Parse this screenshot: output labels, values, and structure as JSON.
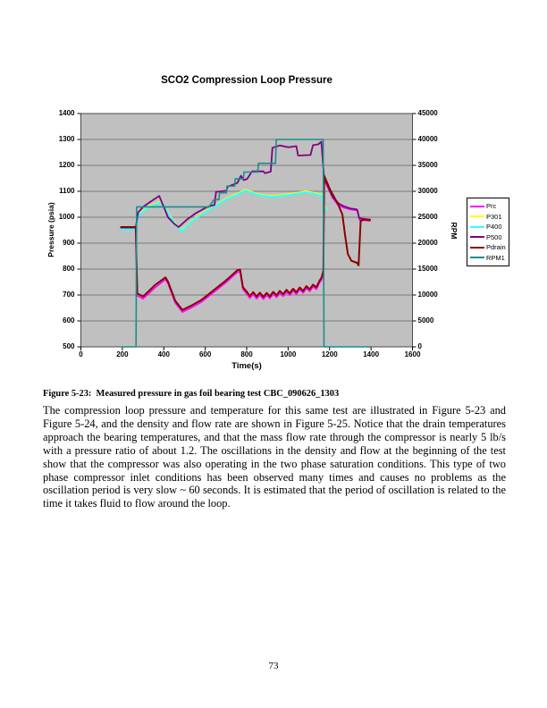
{
  "page": {
    "number": "73"
  },
  "figure": {
    "caption": "Figure 5-23:  Measured pressure in gas foil bearing test CBC_090626_1303"
  },
  "paragraph": {
    "text": "The compression loop pressure and temperature for this same test are illustrated in Figure 5-23 and Figure 5-24, and the density and flow rate are shown in Figure 5-25.  Notice that the drain temperatures approach the bearing temperatures, and that the mass flow rate through the compressor is nearly 5 lb/s with a pressure ratio of about 1.2.  The oscillations in the density and flow at the beginning of the test show that the compressor was also operating in the two phase saturation conditions.  This type of two phase compressor inlet conditions has been observed many times and causes no problems as the oscillation period is very slow ~ 60 seconds.  It is estimated that the period of oscillation is related to the time it takes fluid to flow around the loop."
  },
  "chart_data": {
    "type": "line",
    "title": "SCO2 Compression Loop Pressure",
    "xlabel": "Time(s)",
    "ylabel_left": "Pressure (psia)",
    "ylabel_right": "RPM",
    "xlim": [
      0,
      1600
    ],
    "ylim_left": [
      500,
      1400
    ],
    "ylim_right": [
      0,
      45000
    ],
    "x_ticks": [
      0,
      200,
      400,
      600,
      800,
      1000,
      1200,
      1400,
      1600
    ],
    "y_ticks_left": [
      500,
      600,
      700,
      800,
      900,
      1000,
      1100,
      1200,
      1300,
      1400
    ],
    "y_ticks_right": [
      0,
      5000,
      10000,
      15000,
      20000,
      25000,
      30000,
      35000,
      40000,
      45000
    ],
    "plot_bg": "#c0c0c0",
    "grid": "horizontal-only",
    "legend_position": "right",
    "series": [
      {
        "name": "Prc",
        "color": "#ff00ff",
        "axis": "left",
        "width": 1.7,
        "points": [
          [
            190,
            955
          ],
          [
            265,
            955
          ],
          [
            272,
            697
          ],
          [
            300,
            686
          ],
          [
            360,
            730
          ],
          [
            408,
            760
          ],
          [
            420,
            745
          ],
          [
            455,
            670
          ],
          [
            490,
            634
          ],
          [
            530,
            650
          ],
          [
            580,
            672
          ],
          [
            640,
            710
          ],
          [
            700,
            748
          ],
          [
            755,
            788
          ],
          [
            768,
            790
          ],
          [
            782,
            722
          ],
          [
            800,
            705
          ],
          [
            815,
            688
          ],
          [
            832,
            703
          ],
          [
            848,
            686
          ],
          [
            864,
            701
          ],
          [
            880,
            684
          ],
          [
            896,
            700
          ],
          [
            912,
            687
          ],
          [
            928,
            704
          ],
          [
            944,
            691
          ],
          [
            960,
            708
          ],
          [
            976,
            695
          ],
          [
            992,
            712
          ],
          [
            1008,
            699
          ],
          [
            1024,
            716
          ],
          [
            1040,
            703
          ],
          [
            1056,
            721
          ],
          [
            1072,
            708
          ],
          [
            1088,
            726
          ],
          [
            1104,
            714
          ],
          [
            1120,
            732
          ],
          [
            1136,
            722
          ],
          [
            1152,
            748
          ],
          [
            1162,
            760
          ],
          [
            1170,
            786
          ],
          [
            1174,
            1145
          ],
          [
            1215,
            1075
          ],
          [
            1240,
            1048
          ],
          [
            1265,
            1038
          ],
          [
            1300,
            1030
          ],
          [
            1335,
            1026
          ],
          [
            1344,
            990
          ],
          [
            1398,
            986
          ]
        ]
      },
      {
        "name": "P301",
        "color": "#ffff00",
        "axis": "left",
        "width": 1.7,
        "points": [
          [
            190,
            957
          ],
          [
            265,
            957
          ],
          [
            276,
            1010
          ],
          [
            330,
            1044
          ],
          [
            390,
            1062
          ],
          [
            425,
            1015
          ],
          [
            460,
            972
          ],
          [
            486,
            950
          ],
          [
            530,
            985
          ],
          [
            580,
            1013
          ],
          [
            640,
            1042
          ],
          [
            700,
            1072
          ],
          [
            750,
            1090
          ],
          [
            795,
            1107
          ],
          [
            860,
            1088
          ],
          [
            920,
            1082
          ],
          [
            1010,
            1090
          ],
          [
            1085,
            1100
          ],
          [
            1130,
            1094
          ],
          [
            1165,
            1086
          ],
          [
            1176,
            1038
          ],
          [
            1190,
            1032
          ]
        ]
      },
      {
        "name": "P400",
        "color": "#33ffff",
        "axis": "left",
        "width": 2.2,
        "points": [
          [
            190,
            953
          ],
          [
            265,
            953
          ],
          [
            276,
            1006
          ],
          [
            330,
            1040
          ],
          [
            390,
            1058
          ],
          [
            425,
            1011
          ],
          [
            460,
            968
          ],
          [
            486,
            946
          ],
          [
            530,
            981
          ],
          [
            580,
            1009
          ],
          [
            640,
            1038
          ],
          [
            700,
            1068
          ],
          [
            750,
            1086
          ],
          [
            795,
            1103
          ],
          [
            860,
            1084
          ],
          [
            920,
            1078
          ],
          [
            1010,
            1086
          ],
          [
            1085,
            1096
          ],
          [
            1130,
            1090
          ],
          [
            1165,
            1082
          ],
          [
            1176,
            1034
          ],
          [
            1190,
            1028
          ]
        ]
      },
      {
        "name": "P500",
        "color": "#800080",
        "axis": "left",
        "width": 1.8,
        "points": [
          [
            190,
            960
          ],
          [
            265,
            960
          ],
          [
            276,
            1018
          ],
          [
            300,
            1040
          ],
          [
            340,
            1062
          ],
          [
            378,
            1082
          ],
          [
            400,
            1040
          ],
          [
            420,
            1000
          ],
          [
            450,
            975
          ],
          [
            472,
            962
          ],
          [
            510,
            990
          ],
          [
            555,
            1016
          ],
          [
            605,
            1038
          ],
          [
            645,
            1048
          ],
          [
            652,
            1098
          ],
          [
            702,
            1102
          ],
          [
            708,
            1118
          ],
          [
            755,
            1132
          ],
          [
            772,
            1160
          ],
          [
            786,
            1143
          ],
          [
            802,
            1148
          ],
          [
            826,
            1177
          ],
          [
            880,
            1177
          ],
          [
            888,
            1170
          ],
          [
            916,
            1176
          ],
          [
            924,
            1268
          ],
          [
            960,
            1277
          ],
          [
            1002,
            1270
          ],
          [
            1040,
            1274
          ],
          [
            1048,
            1238
          ],
          [
            1108,
            1240
          ],
          [
            1120,
            1278
          ],
          [
            1145,
            1281
          ],
          [
            1160,
            1291
          ],
          [
            1174,
            1150
          ],
          [
            1215,
            1078
          ],
          [
            1245,
            1052
          ],
          [
            1270,
            1042
          ],
          [
            1300,
            1034
          ],
          [
            1332,
            1030
          ],
          [
            1344,
            996
          ],
          [
            1398,
            990
          ]
        ]
      },
      {
        "name": "Pdrain",
        "color": "#8b0000",
        "axis": "left",
        "width": 2.0,
        "points": [
          [
            190,
            962
          ],
          [
            265,
            962
          ],
          [
            272,
            706
          ],
          [
            300,
            694
          ],
          [
            360,
            740
          ],
          [
            408,
            768
          ],
          [
            420,
            752
          ],
          [
            455,
            678
          ],
          [
            490,
            642
          ],
          [
            530,
            658
          ],
          [
            580,
            680
          ],
          [
            640,
            718
          ],
          [
            700,
            756
          ],
          [
            755,
            796
          ],
          [
            768,
            798
          ],
          [
            782,
            730
          ],
          [
            800,
            713
          ],
          [
            815,
            696
          ],
          [
            832,
            711
          ],
          [
            848,
            694
          ],
          [
            864,
            709
          ],
          [
            880,
            692
          ],
          [
            896,
            708
          ],
          [
            912,
            695
          ],
          [
            928,
            712
          ],
          [
            944,
            699
          ],
          [
            960,
            716
          ],
          [
            976,
            703
          ],
          [
            992,
            720
          ],
          [
            1008,
            707
          ],
          [
            1024,
            724
          ],
          [
            1040,
            711
          ],
          [
            1056,
            729
          ],
          [
            1072,
            716
          ],
          [
            1088,
            734
          ],
          [
            1104,
            722
          ],
          [
            1120,
            740
          ],
          [
            1136,
            730
          ],
          [
            1152,
            756
          ],
          [
            1162,
            768
          ],
          [
            1170,
            794
          ],
          [
            1174,
            1160
          ],
          [
            1205,
            1102
          ],
          [
            1240,
            1052
          ],
          [
            1262,
            1010
          ],
          [
            1275,
            930
          ],
          [
            1288,
            858
          ],
          [
            1305,
            832
          ],
          [
            1332,
            824
          ],
          [
            1340,
            814
          ],
          [
            1350,
            985
          ],
          [
            1365,
            991
          ],
          [
            1398,
            990
          ]
        ]
      },
      {
        "name": "RPM1",
        "color": "#1c8c8c",
        "axis": "right",
        "width": 1.6,
        "points": [
          [
            196,
            0
          ],
          [
            266,
            0
          ],
          [
            269,
            27000
          ],
          [
            618,
            27000
          ],
          [
            642,
            28400
          ],
          [
            666,
            28400
          ],
          [
            669,
            29700
          ],
          [
            702,
            29700
          ],
          [
            705,
            31000
          ],
          [
            742,
            31000
          ],
          [
            745,
            32400
          ],
          [
            784,
            32400
          ],
          [
            787,
            33700
          ],
          [
            853,
            33700
          ],
          [
            857,
            35400
          ],
          [
            939,
            35400
          ],
          [
            943,
            40000
          ],
          [
            1169,
            40000
          ],
          [
            1173,
            0
          ],
          [
            1396,
            0
          ]
        ]
      }
    ]
  }
}
